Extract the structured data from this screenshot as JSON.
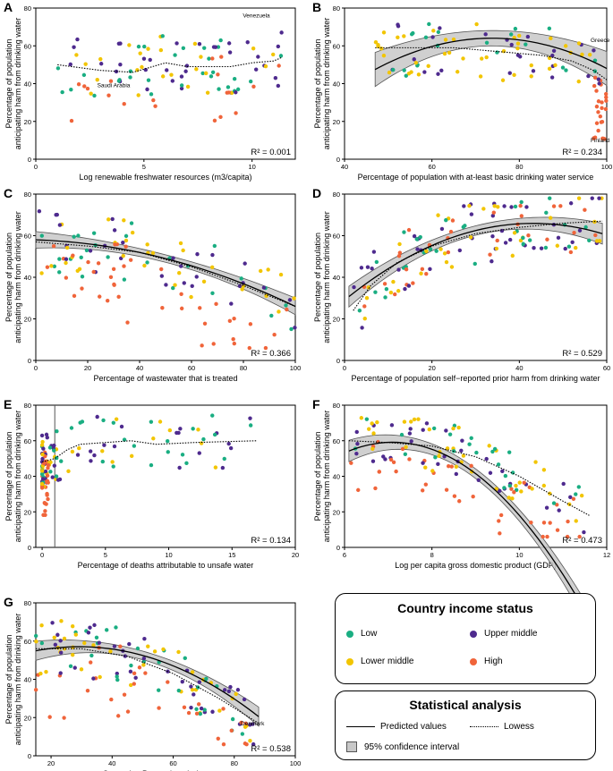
{
  "colors": {
    "Low": "#1aae82",
    "Lower middle": "#f2c500",
    "Upper middle": "#4e2a8e",
    "High": "#f0643a",
    "ci": "#c8c8c8"
  },
  "y_axis_label": [
    "Percentage of population",
    "anticipating harm from drinking water"
  ],
  "legend": {
    "income_title": "Country income status",
    "income_items": [
      "Low",
      "Upper middle",
      "Lower middle",
      "High"
    ],
    "stat_title": "Statistical analysis",
    "predicted": "Predicted values",
    "lowess": "Lowess",
    "ci": "95% confidence interval"
  },
  "chart_data": [
    {
      "panel": "A",
      "type": "scatter",
      "xlabel": "Log renewable freshwater resources (m3/capita)",
      "xlim": [
        0,
        12
      ],
      "xticks": [
        0,
        5,
        10
      ],
      "ylim": [
        0,
        80
      ],
      "yticks": [
        0,
        20,
        40,
        60,
        80
      ],
      "r2": "R² = 0.001",
      "lowess": [
        [
          1,
          50
        ],
        [
          3,
          47
        ],
        [
          4.5,
          46
        ],
        [
          6,
          51
        ],
        [
          7,
          49
        ],
        [
          8,
          49
        ],
        [
          9,
          49
        ],
        [
          10,
          51
        ],
        [
          11,
          52
        ],
        [
          11.4,
          54
        ]
      ],
      "fit": null,
      "labels": [
        {
          "text": "Venezuela",
          "x": 10.2,
          "y": 75
        },
        {
          "text": "Saudi Arabia",
          "x": 3.6,
          "y": 38
        }
      ],
      "seed": 11,
      "n": 110
    },
    {
      "panel": "B",
      "type": "scatter",
      "xlabel": "Percentage of population with at-least basic drinking water service",
      "xlim": [
        40,
        100
      ],
      "xticks": [
        40,
        60,
        80,
        100
      ],
      "ylim": [
        0,
        80
      ],
      "yticks": [
        0,
        20,
        40,
        60,
        80
      ],
      "r2": "R² = 0.234",
      "lowess": [
        [
          47,
          59
        ],
        [
          55,
          59
        ],
        [
          65,
          59
        ],
        [
          75,
          57
        ],
        [
          85,
          55
        ],
        [
          92,
          52
        ],
        [
          97,
          47
        ],
        [
          100,
          42
        ]
      ],
      "fit": {
        "type": "quad",
        "a": -0.0232,
        "b": 3.42,
        "c": -62,
        "x0": 47,
        "x1": 100,
        "ci": 9
      },
      "labels": [
        {
          "text": "Greece",
          "x": 98.5,
          "y": 62
        },
        {
          "text": "Finland",
          "x": 98.5,
          "y": 9
        }
      ],
      "seed": 21,
      "n": 115
    },
    {
      "panel": "C",
      "type": "scatter",
      "xlabel": "Percentage of wastewater that is treated",
      "xlim": [
        0,
        100
      ],
      "xticks": [
        0,
        20,
        40,
        60,
        80,
        100
      ],
      "ylim": [
        0,
        80
      ],
      "yticks": [
        0,
        20,
        40,
        60,
        80
      ],
      "r2": "R² = 0.366",
      "lowess": [
        [
          0,
          57
        ],
        [
          20,
          55
        ],
        [
          40,
          52
        ],
        [
          60,
          45
        ],
        [
          80,
          36
        ],
        [
          100,
          26
        ]
      ],
      "fit": {
        "type": "quad",
        "a": -0.0028,
        "b": -0.04,
        "c": 58,
        "x0": 0,
        "x1": 100,
        "ci": 4
      },
      "labels": [],
      "seed": 31,
      "n": 130
    },
    {
      "panel": "D",
      "type": "scatter",
      "xlabel": "Percentage of population self−reported prior harm from drinking water",
      "xlim": [
        0,
        60
      ],
      "xticks": [
        0,
        20,
        40,
        60
      ],
      "ylim": [
        0,
        80
      ],
      "yticks": [
        0,
        20,
        40,
        60,
        80
      ],
      "r2": "R² = 0.529",
      "lowess": [
        [
          2,
          24
        ],
        [
          6,
          36
        ],
        [
          12,
          47
        ],
        [
          20,
          55
        ],
        [
          30,
          61
        ],
        [
          40,
          64
        ],
        [
          50,
          66
        ],
        [
          59,
          67
        ]
      ],
      "fit": {
        "type": "quad",
        "a": -0.0198,
        "b": 1.71,
        "c": 29,
        "x0": 1,
        "x1": 59,
        "ci": 5
      },
      "labels": [],
      "seed": 41,
      "n": 140
    },
    {
      "panel": "E",
      "type": "scatter",
      "xlabel": "Percentage of deaths attributable to unsafe water",
      "xlim": [
        -0.5,
        20
      ],
      "xticks": [
        0,
        5,
        10,
        15,
        20
      ],
      "ylim": [
        0,
        80
      ],
      "yticks": [
        0,
        20,
        40,
        60,
        80
      ],
      "r2": "R² = 0.134",
      "lowess": [
        [
          0,
          48
        ],
        [
          1,
          50
        ],
        [
          2,
          55
        ],
        [
          3,
          58
        ],
        [
          5,
          59
        ],
        [
          7,
          60
        ],
        [
          9,
          58
        ],
        [
          12,
          59
        ],
        [
          17,
          60
        ]
      ],
      "fit": null,
      "vline": 1.0,
      "labels": [],
      "seed": 51,
      "n": 140
    },
    {
      "panel": "F",
      "type": "scatter",
      "xlabel": "Log per capita gross domestic product (GDP)",
      "xlim": [
        6,
        12
      ],
      "xticks": [
        6,
        8,
        10,
        12
      ],
      "ylim": [
        0,
        80
      ],
      "yticks": [
        0,
        20,
        40,
        60,
        80
      ],
      "r2": "R² = 0.473",
      "lowess": [
        [
          6.1,
          60
        ],
        [
          7,
          59
        ],
        [
          8,
          57
        ],
        [
          9,
          51
        ],
        [
          10,
          40
        ],
        [
          11,
          26
        ],
        [
          11.6,
          18
        ]
      ],
      "fit": {
        "type": "quad",
        "a": -4.9,
        "b": 69.6,
        "c": -188,
        "x0": 6.1,
        "x1": 11.7,
        "ci": 6
      },
      "labels": [],
      "seed": 61,
      "n": 140
    },
    {
      "panel": "G",
      "type": "scatter",
      "xlabel": "Corruption Perceptions Index score",
      "xlim": [
        15,
        100
      ],
      "xticks": [
        20,
        40,
        60,
        80,
        100
      ],
      "ylim": [
        0,
        80
      ],
      "yticks": [
        0,
        20,
        40,
        60,
        80
      ],
      "r2": "R² = 0.538",
      "lowess": [
        [
          15,
          56
        ],
        [
          30,
          56
        ],
        [
          45,
          52
        ],
        [
          60,
          43
        ],
        [
          75,
          30
        ],
        [
          88,
          17
        ]
      ],
      "fit": {
        "type": "quad",
        "a": -0.0106,
        "b": 0.62,
        "c": 48,
        "x0": 15,
        "x1": 88,
        "ci": 5
      },
      "labels": [
        {
          "text": "Denmark",
          "x": 86,
          "y": 16
        }
      ],
      "seed": 71,
      "n": 140
    }
  ]
}
